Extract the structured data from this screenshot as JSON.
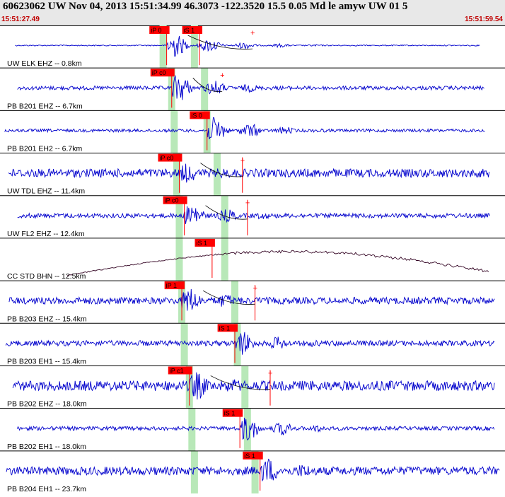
{
  "header": {
    "title": "60623062 UW Nov 04, 2013 15:51:34.99    46.3073 -122.3520 15.5 0.05 Md le amyw UW 01    5",
    "start_time": "15:51:27.49",
    "end_time": "15:51:59.54"
  },
  "colors": {
    "trace": "#0000cc",
    "trace_low": "#300020",
    "pick": "#ff0000",
    "window": "#b8e8b8",
    "header_bg": "#e8e8e8"
  },
  "chart_data": {
    "type": "seismogram",
    "time_range": [
      "15:51:27.49",
      "15:51:59.54"
    ],
    "traces": [
      {
        "label": "UW ELK EHZ -- 0.8km",
        "kind": "hf",
        "noise": 0.03,
        "arrival": 0.33,
        "amp": 0.75,
        "end": 0.95,
        "color": "#0000cc",
        "picks": [
          {
            "label": "iP 0",
            "t": 0.33
          },
          {
            "label": "iS 1",
            "t": 0.395
          }
        ],
        "plus": [
          0.5
        ],
        "windows": [
          0.323,
          0.385
        ]
      },
      {
        "label": "PB B201 EHZ -- 6.7km",
        "kind": "hf",
        "noise": 0.1,
        "arrival": 0.34,
        "amp": 0.85,
        "end": 0.96,
        "color": "#0000cc",
        "picks": [
          {
            "label": "iP c0",
            "t": 0.34
          }
        ],
        "plus": [
          0.44
        ],
        "windows": [
          0.34,
          0.405
        ]
      },
      {
        "label": "PB B201 EH2 -- 6.7km",
        "kind": "hf",
        "noise": 0.08,
        "arrival": 0.41,
        "amp": 0.8,
        "end": 0.96,
        "color": "#0000cc",
        "picks": [
          {
            "label": "iS 0",
            "t": 0.41
          }
        ],
        "plus": [],
        "windows": [
          0.345,
          0.41
        ]
      },
      {
        "label": "UW TDL EHZ -- 11.4km",
        "kind": "hf",
        "noise": 0.22,
        "arrival": 0.355,
        "amp": 0.6,
        "end": 0.97,
        "color": "#0000cc",
        "picks": [
          {
            "label": "iP c0",
            "t": 0.355
          },
          {
            "label": "",
            "t": 0.48
          }
        ],
        "plus": [
          0.48
        ],
        "windows": [
          0.35,
          0.43
        ]
      },
      {
        "label": "UW FL2 EHZ -- 12.4km",
        "kind": "hf",
        "noise": 0.12,
        "arrival": 0.365,
        "amp": 0.75,
        "end": 0.97,
        "color": "#0000cc",
        "picks": [
          {
            "label": "iP c0",
            "t": 0.365
          },
          {
            "label": "",
            "t": 0.49
          }
        ],
        "plus": [
          0.49
        ],
        "windows": [
          0.355,
          0.445
        ]
      },
      {
        "label": "CC STD BHN -- 12.5km",
        "kind": "lp",
        "noise": 0.04,
        "arrival": 0.42,
        "amp": 0.4,
        "end": 0.97,
        "color": "#300020",
        "picks": [
          {
            "label": "iS 1",
            "t": 0.42
          }
        ],
        "plus": [],
        "windows": [
          0.355,
          0.445
        ]
      },
      {
        "label": "PB B203 EHZ -- 15.4km",
        "kind": "hf",
        "noise": 0.18,
        "arrival": 0.36,
        "amp": 0.8,
        "end": 0.98,
        "color": "#0000cc",
        "picks": [
          {
            "label": "iP 1",
            "t": 0.36
          },
          {
            "label": "",
            "t": 0.505
          }
        ],
        "plus": [
          0.505
        ],
        "windows": [
          0.36,
          0.465
        ]
      },
      {
        "label": "PB B203 EH1 -- 15.4km",
        "kind": "hf",
        "noise": 0.14,
        "arrival": 0.465,
        "amp": 0.75,
        "end": 0.98,
        "color": "#0000cc",
        "picks": [
          {
            "label": "iS 1",
            "t": 0.465
          }
        ],
        "plus": [],
        "windows": [
          0.365,
          0.47
        ]
      },
      {
        "label": "PB B202 EHZ -- 18.0km",
        "kind": "hf",
        "noise": 0.26,
        "arrival": 0.375,
        "amp": 0.85,
        "end": 0.98,
        "color": "#0000cc",
        "picks": [
          {
            "label": "iP c1",
            "t": 0.375
          },
          {
            "label": "",
            "t": 0.535
          }
        ],
        "plus": [
          0.535
        ],
        "windows": [
          0.375,
          0.485
        ]
      },
      {
        "label": "PB B202 EH1 -- 18.0km",
        "kind": "hf",
        "noise": 0.1,
        "arrival": 0.475,
        "amp": 0.8,
        "end": 0.98,
        "color": "#0000cc",
        "picks": [
          {
            "label": "iS 1",
            "t": 0.475
          }
        ],
        "plus": [],
        "windows": [
          0.38,
          0.49
        ]
      },
      {
        "label": "PB B204 EH1 -- 23.7km",
        "kind": "hf",
        "noise": 0.22,
        "arrival": 0.515,
        "amp": 0.8,
        "end": 0.99,
        "color": "#0000cc",
        "picks": [
          {
            "label": "iS 1",
            "t": 0.515
          }
        ],
        "plus": [],
        "windows": [
          0.385,
          0.505
        ]
      }
    ]
  }
}
